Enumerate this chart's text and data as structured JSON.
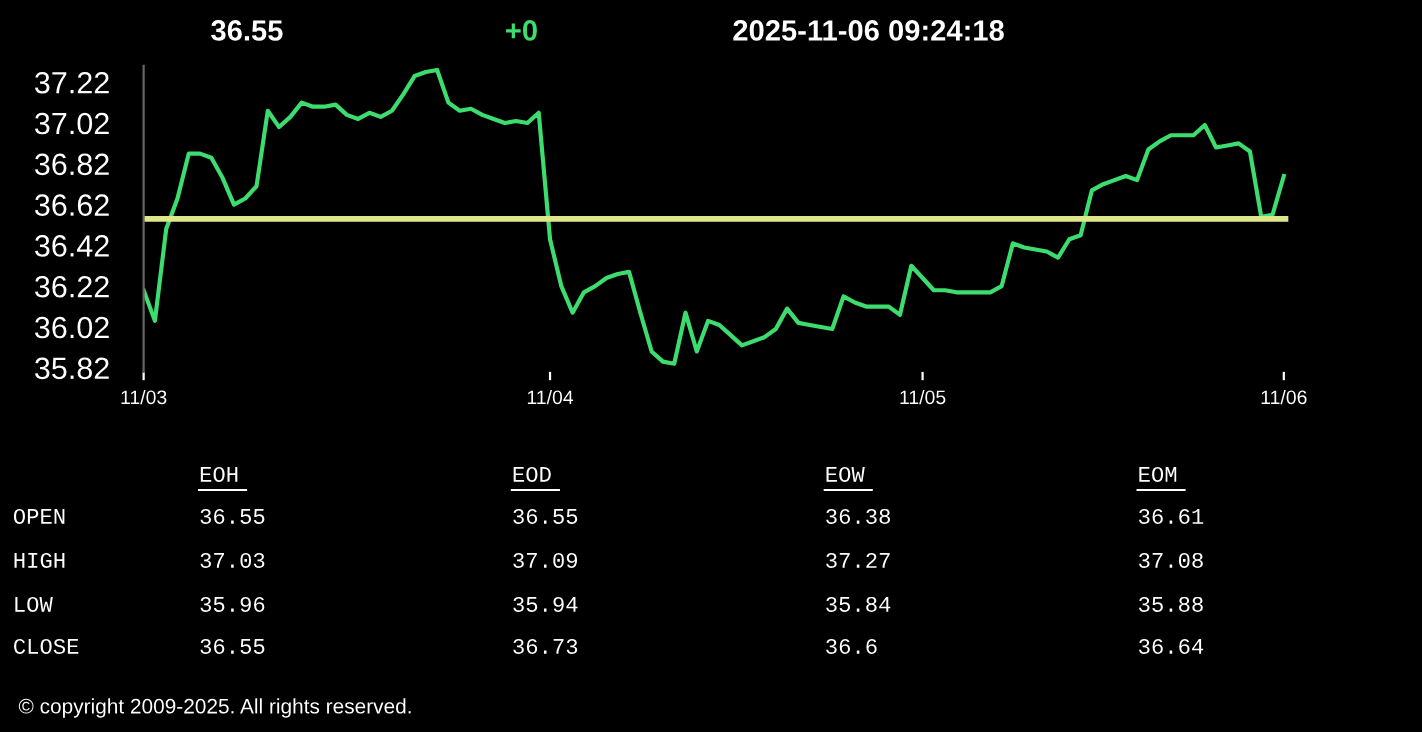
{
  "chart_data": {
    "type": "line",
    "title": "36.55",
    "subtitle": "+0",
    "annotations": [
      "2025-11-06 09:24:18",
      "EOH",
      "EOD",
      "EOW",
      "EOM",
      "OPEN",
      "36.55",
      "36.55",
      "36.38",
      "36.61",
      "HIGH",
      "37.03",
      "37.09",
      "37.27",
      "37.08",
      "LOW",
      "35.96",
      "35.94",
      "35.84",
      "35.88",
      "CLOSE",
      "36.55",
      "36.73",
      "36.6",
      "36.64",
      "© copyright 2009-2025. All rights reserved."
    ],
    "categories": [
      "11/03",
      null,
      null,
      null,
      null,
      null,
      null,
      null,
      null,
      null,
      null,
      null,
      null,
      null,
      null,
      null,
      null,
      null,
      null,
      null,
      null,
      null,
      null,
      null,
      null,
      null,
      null,
      null,
      null,
      null,
      null,
      null,
      null,
      null,
      null,
      null,
      "11/04",
      null,
      null,
      null,
      null,
      null,
      null,
      null,
      null,
      null,
      null,
      null,
      null,
      null,
      null,
      null,
      null,
      null,
      null,
      null,
      null,
      null,
      null,
      null,
      null,
      null,
      null,
      null,
      null,
      null,
      null,
      null,
      null,
      "11/05",
      null,
      null,
      null,
      null,
      null,
      null,
      null,
      null,
      null,
      null,
      null,
      null,
      null,
      null,
      null,
      null,
      null,
      null,
      null,
      null,
      null,
      null,
      null,
      null,
      null,
      null,
      null,
      null,
      null,
      null,
      null,
      "11/06"
    ],
    "series": [
      {
        "color": "#3ddc6e",
        "values": [
          36.2,
          36.05,
          36.5,
          36.65,
          36.87,
          36.87,
          36.85,
          36.75,
          36.62,
          36.65,
          36.71,
          37.08,
          37.0,
          37.05,
          37.12,
          37.1,
          37.1,
          37.11,
          37.06,
          37.04,
          37.07,
          37.05,
          37.08,
          37.16,
          37.25,
          37.27,
          37.28,
          37.12,
          37.08,
          37.09,
          37.06,
          37.04,
          37.02,
          37.03,
          37.02,
          37.07,
          36.45,
          36.22,
          36.09,
          36.19,
          36.22,
          36.26,
          36.28,
          36.29,
          36.09,
          35.9,
          35.85,
          35.84,
          36.09,
          35.9,
          36.05,
          36.03,
          35.98,
          35.93,
          35.95,
          35.97,
          36.01,
          36.11,
          36.04,
          36.03,
          36.02,
          36.01,
          36.17,
          36.14,
          36.12,
          36.12,
          36.12,
          36.08,
          36.32,
          36.26,
          36.2,
          36.2,
          36.19,
          36.19,
          36.19,
          36.19,
          36.22,
          36.43,
          36.41,
          36.4,
          36.39,
          36.36,
          36.45,
          36.47,
          36.69,
          36.72,
          36.74,
          36.76,
          36.74,
          36.89,
          36.93,
          36.96,
          36.96,
          36.96,
          37.01,
          36.9,
          36.91,
          36.92,
          36.88,
          36.56,
          36.57,
          36.76
        ]
      }
    ],
    "ref_lines": [
      {
        "axis": "y",
        "value": 36.55,
        "color": "#e0e68a"
      }
    ],
    "ylim": [
      35.8,
      37.3
    ],
    "yticks": [
      35.82,
      36.02,
      36.22,
      36.42,
      36.62,
      36.82,
      37.02,
      37.22
    ]
  }
}
